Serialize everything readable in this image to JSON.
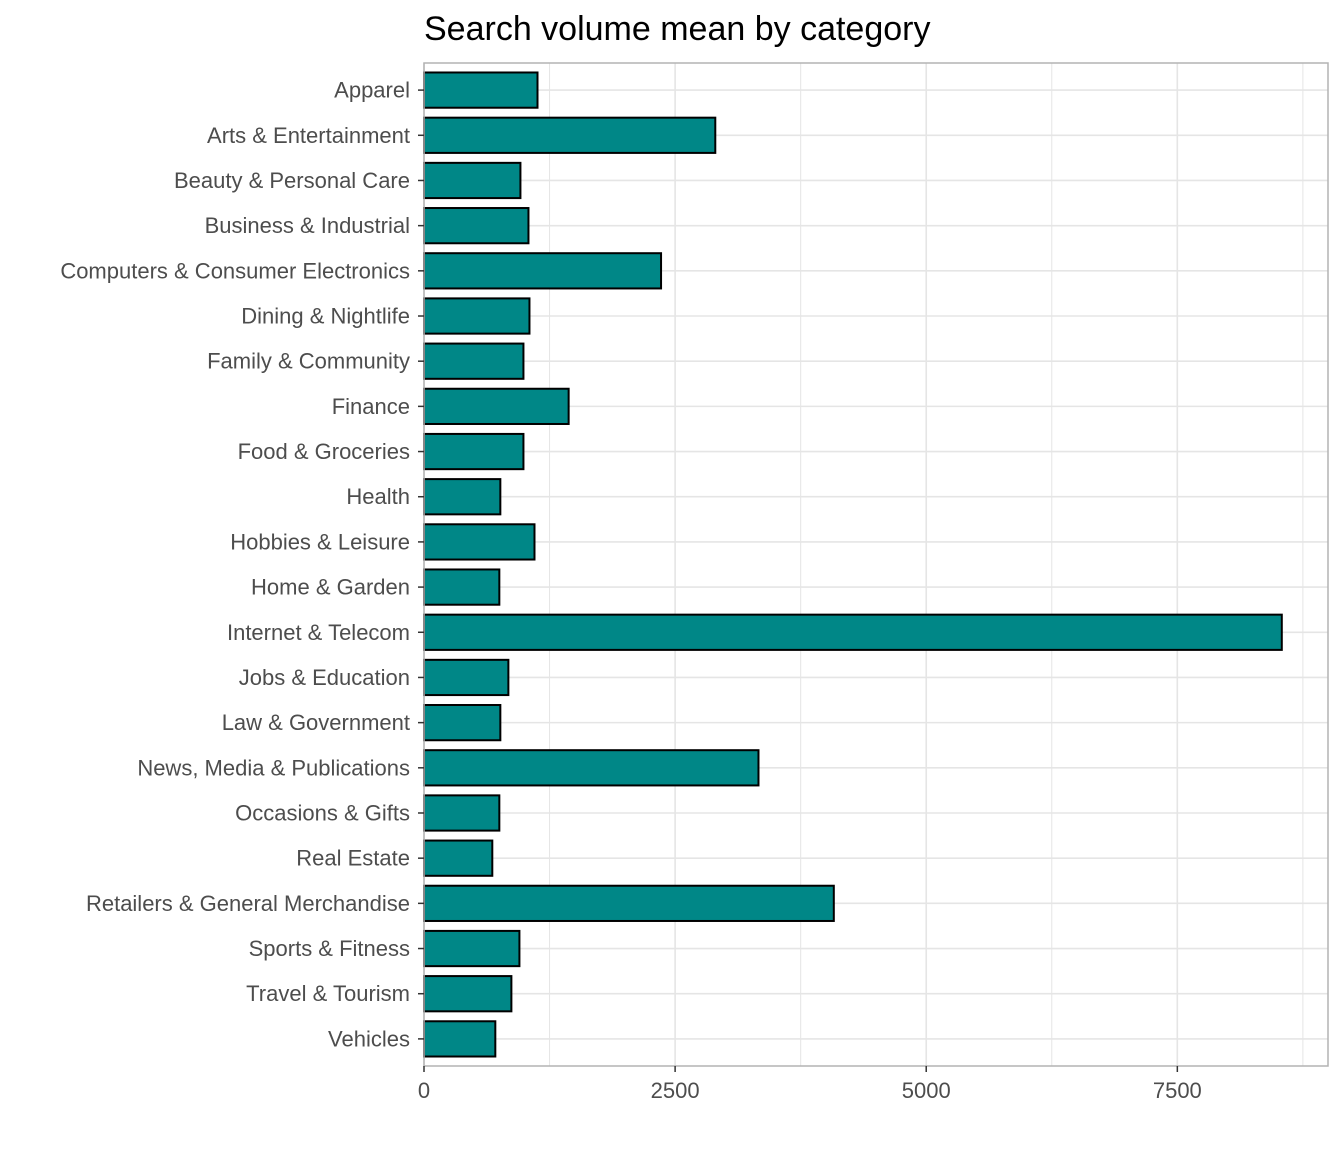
{
  "chart_data": {
    "type": "bar",
    "orientation": "horizontal",
    "title": "Search volume mean by category",
    "xlabel": "",
    "ylabel": "",
    "categories": [
      "Apparel",
      "Arts & Entertainment",
      "Beauty & Personal Care",
      "Business & Industrial",
      "Computers & Consumer Electronics",
      "Dining & Nightlife",
      "Family & Community",
      "Finance",
      "Food & Groceries",
      "Health",
      "Hobbies & Leisure",
      "Home & Garden",
      "Internet & Telecom",
      "Jobs & Education",
      "Law & Government",
      "News, Media & Publications",
      "Occasions & Gifts",
      "Real Estate",
      "Retailers & General Merchandise",
      "Sports & Fitness",
      "Travel & Tourism",
      "Vehicles"
    ],
    "values": [
      1130,
      2900,
      960,
      1040,
      2360,
      1050,
      990,
      1440,
      990,
      760,
      1100,
      750,
      8540,
      840,
      760,
      3330,
      750,
      680,
      4080,
      950,
      870,
      710
    ],
    "xlim": [
      0,
      9000
    ],
    "x_ticks": [
      0,
      2500,
      5000,
      7500
    ],
    "x_tick_labels": [
      "0",
      "2500",
      "5000",
      "7500"
    ],
    "grid": true,
    "legend": "none",
    "colors": {
      "bar_fill": "#008787",
      "bar_stroke": "#000000",
      "grid": "#e5e5e5",
      "panel_border": "#b3b3b3",
      "tick_text": "#4d4d4d"
    }
  }
}
